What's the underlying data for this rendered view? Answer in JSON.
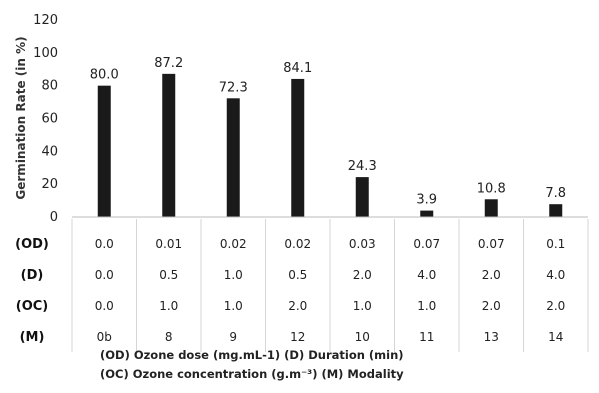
{
  "chart_data": {
    "type": "bar",
    "ylabel": "Germination Rate (in %)",
    "ylim": [
      0,
      120
    ],
    "yticks": [
      0,
      20,
      40,
      60,
      80,
      100,
      120
    ],
    "values": [
      80.0,
      87.2,
      72.3,
      84.1,
      24.3,
      3.9,
      10.8,
      7.8
    ],
    "value_labels": [
      "80.0",
      "87.2",
      "72.3",
      "84.1",
      "24.3",
      "3.9",
      "10.8",
      "7.8"
    ],
    "bar_color": "#1a1a1a",
    "grid": false,
    "table": {
      "rows": [
        {
          "label": "(OD)",
          "cells": [
            "0.0",
            "0.01",
            "0.02",
            "0.02",
            "0.03",
            "0.07",
            "0.07",
            "0.1"
          ]
        },
        {
          "label": "(D)",
          "cells": [
            "0.0",
            "0.5",
            "1.0",
            "0.5",
            "2.0",
            "4.0",
            "2.0",
            "4.0"
          ]
        },
        {
          "label": "(OC)",
          "cells": [
            "0.0",
            "1.0",
            "1.0",
            "2.0",
            "1.0",
            "1.0",
            "2.0",
            "2.0"
          ]
        },
        {
          "label": "(M)",
          "cells": [
            "0b",
            "8",
            "9",
            "12",
            "10",
            "11",
            "13",
            "14"
          ]
        }
      ]
    },
    "caption_line1": "(OD) Ozone dose (mg.mL-1) (D) Duration (min)",
    "caption_line2": "(OC) Ozone concentration (g.m⁻³) (M) Modality"
  }
}
